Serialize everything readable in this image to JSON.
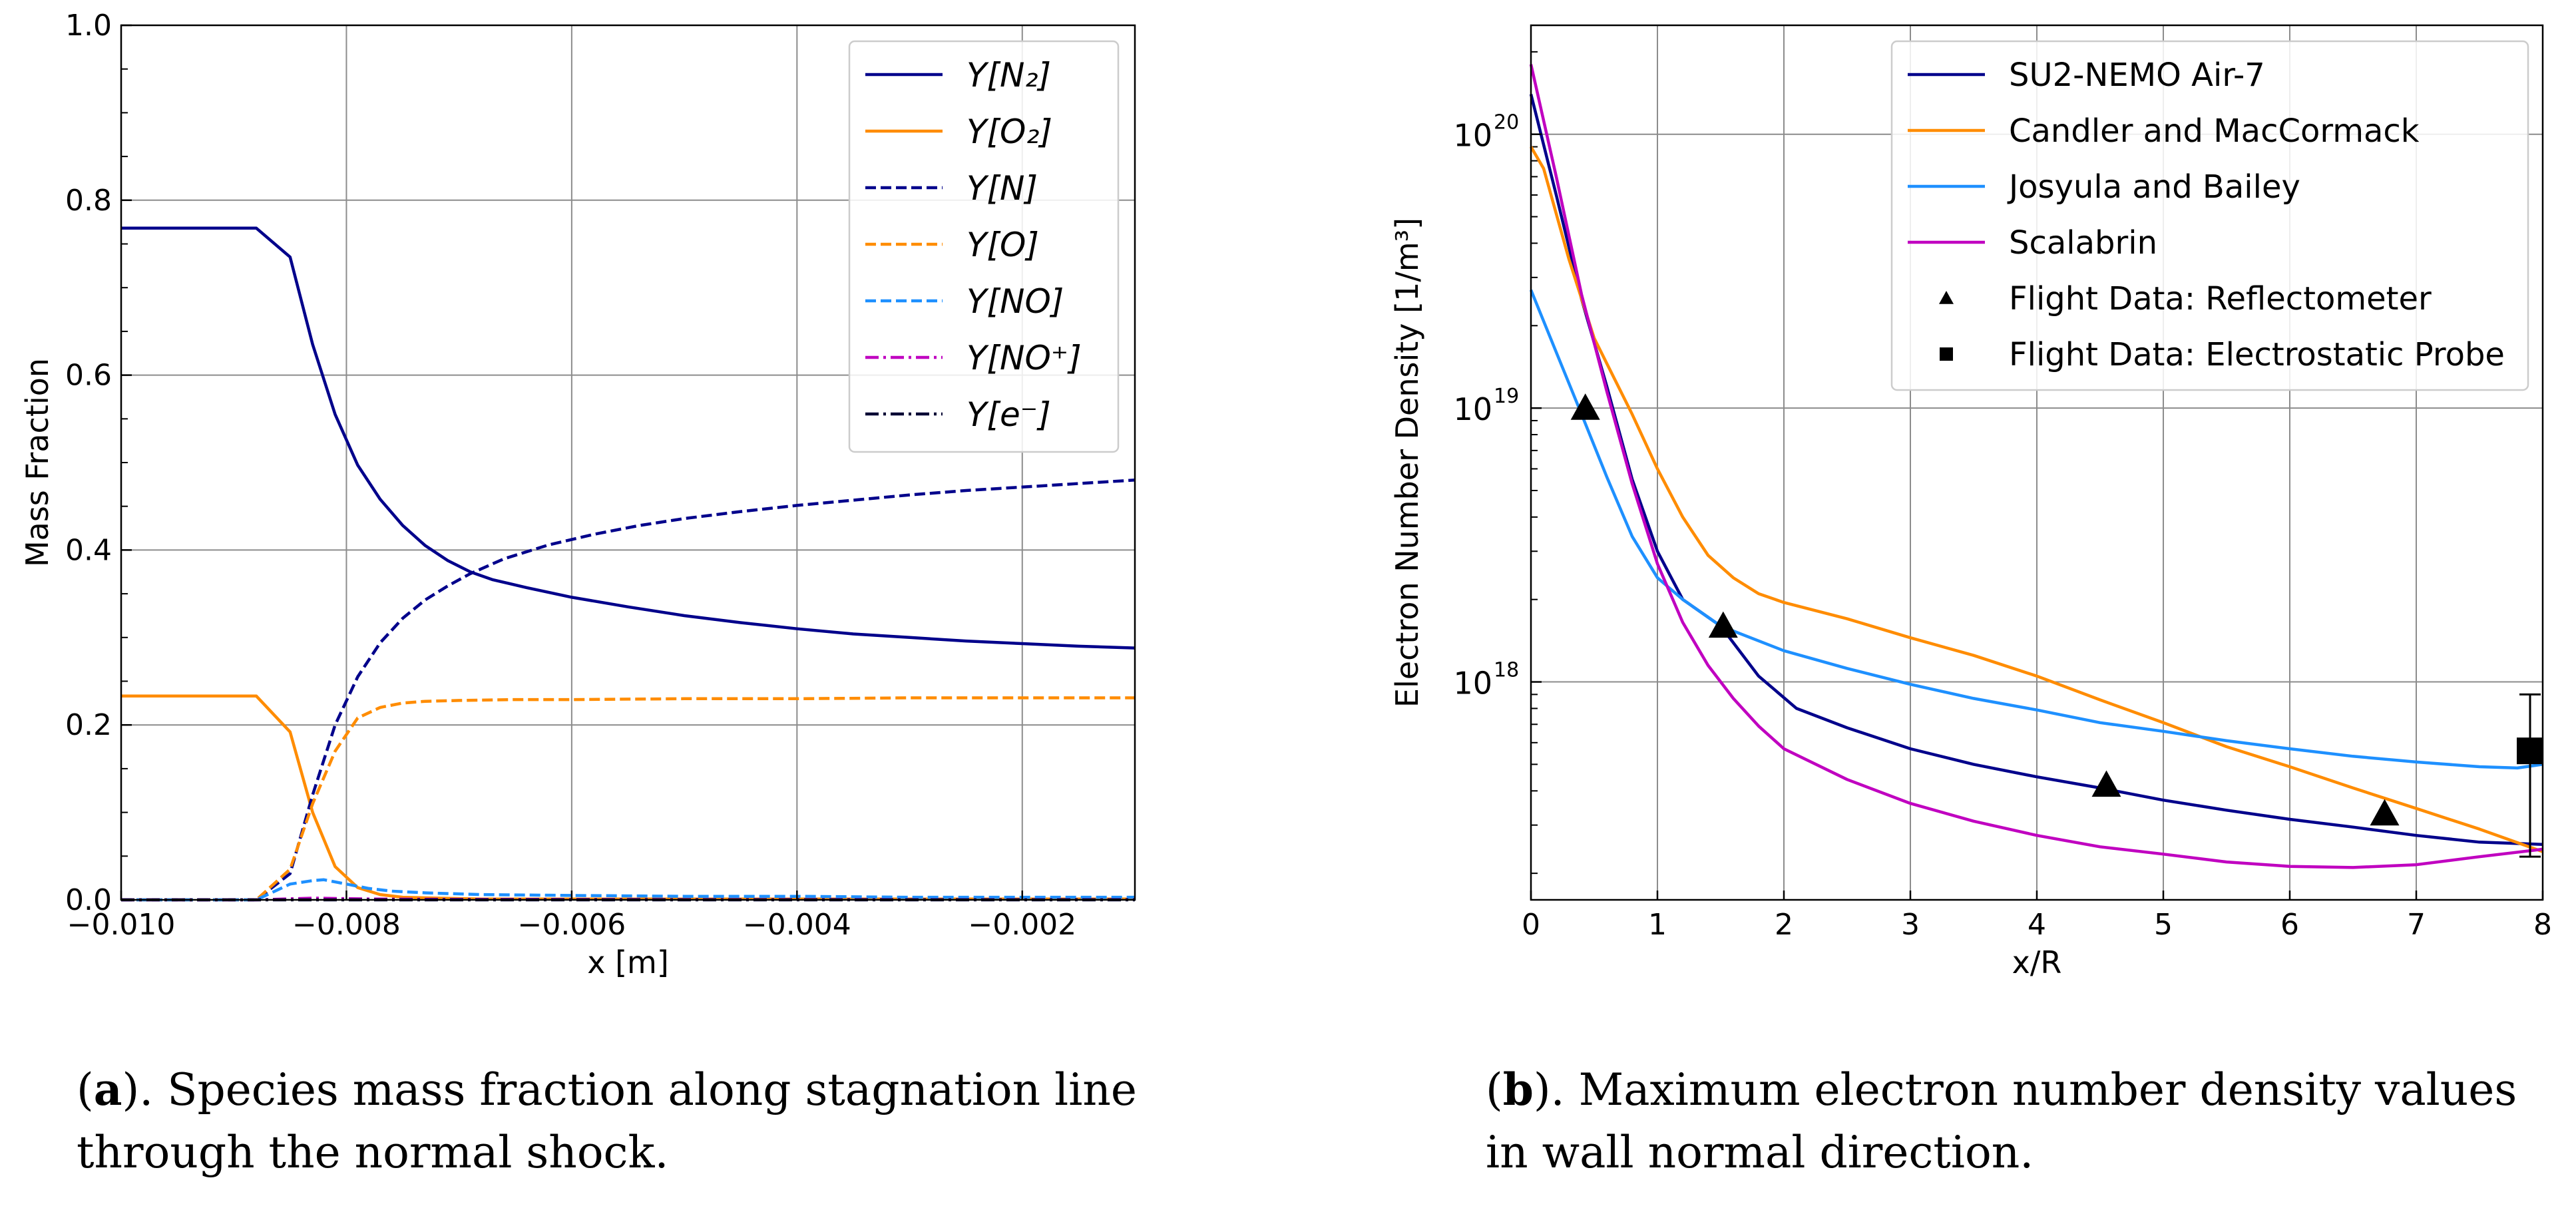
{
  "chart_data": [
    {
      "type": "line",
      "panel": "a",
      "title": "",
      "xlabel": "x [m]",
      "ylabel": "Mass Fraction",
      "xlim": [
        -0.01,
        -0.001
      ],
      "ylim": [
        0.0,
        1.0
      ],
      "grid": true,
      "legend": "top-right",
      "xticks": [
        -0.01,
        -0.008,
        -0.006,
        -0.004,
        -0.002
      ],
      "xtick_labels": [
        "−0.010",
        "−0.008",
        "−0.006",
        "−0.004",
        "−0.002"
      ],
      "yticks": [
        0.0,
        0.2,
        0.4,
        0.6,
        0.8,
        1.0
      ],
      "ytick_labels": [
        "0.0",
        "0.2",
        "0.4",
        "0.6",
        "0.8",
        "1.0"
      ],
      "series": [
        {
          "name": "Y[N2]",
          "label": "Y[N₂]",
          "color": "#00008b",
          "dash": "solid",
          "x": [
            -0.01,
            -0.0094,
            -0.0088,
            -0.0085,
            -0.0083,
            -0.0081,
            -0.0079,
            -0.0077,
            -0.0075,
            -0.0073,
            -0.0071,
            -0.0069,
            -0.0067,
            -0.0064,
            -0.006,
            -0.0055,
            -0.005,
            -0.0045,
            -0.004,
            -0.0035,
            -0.003,
            -0.0025,
            -0.002,
            -0.0015,
            -0.001
          ],
          "y": [
            0.768,
            0.768,
            0.768,
            0.735,
            0.635,
            0.555,
            0.497,
            0.458,
            0.428,
            0.405,
            0.388,
            0.375,
            0.366,
            0.357,
            0.346,
            0.335,
            0.325,
            0.317,
            0.31,
            0.304,
            0.3,
            0.296,
            0.293,
            0.29,
            0.288
          ]
        },
        {
          "name": "Y[O2]",
          "label": "Y[O₂]",
          "color": "#ff8c00",
          "dash": "solid",
          "x": [
            -0.01,
            -0.0094,
            -0.0088,
            -0.0085,
            -0.0083,
            -0.0081,
            -0.0079,
            -0.0077,
            -0.0075,
            -0.0072,
            -0.0068,
            -0.006,
            -0.005,
            -0.004,
            -0.003,
            -0.002,
            -0.001
          ],
          "y": [
            0.233,
            0.233,
            0.233,
            0.192,
            0.1,
            0.038,
            0.014,
            0.006,
            0.003,
            0.002,
            0.001,
            0.001,
            0.001,
            0.001,
            0.001,
            0.001,
            0.001
          ]
        },
        {
          "name": "Y[N]",
          "label": "Y[N]",
          "color": "#00008b",
          "dash": "dashed",
          "x": [
            -0.01,
            -0.0094,
            -0.0088,
            -0.0085,
            -0.0083,
            -0.0081,
            -0.0079,
            -0.0077,
            -0.0075,
            -0.0073,
            -0.0071,
            -0.0069,
            -0.0066,
            -0.0062,
            -0.0058,
            -0.0054,
            -0.005,
            -0.0045,
            -0.004,
            -0.0035,
            -0.003,
            -0.0025,
            -0.002,
            -0.0015,
            -0.001
          ],
          "y": [
            0.0,
            0.0,
            0.0,
            0.03,
            0.12,
            0.2,
            0.255,
            0.294,
            0.322,
            0.343,
            0.359,
            0.373,
            0.39,
            0.406,
            0.418,
            0.428,
            0.436,
            0.444,
            0.451,
            0.457,
            0.463,
            0.468,
            0.472,
            0.476,
            0.48
          ]
        },
        {
          "name": "Y[O]",
          "label": "Y[O]",
          "color": "#ff8c00",
          "dash": "dashed",
          "x": [
            -0.01,
            -0.0094,
            -0.0088,
            -0.0085,
            -0.0083,
            -0.0081,
            -0.0079,
            -0.0077,
            -0.0075,
            -0.0073,
            -0.007,
            -0.0065,
            -0.006,
            -0.005,
            -0.004,
            -0.003,
            -0.002,
            -0.001
          ],
          "y": [
            0.0,
            0.0,
            0.0,
            0.035,
            0.11,
            0.17,
            0.208,
            0.22,
            0.225,
            0.227,
            0.228,
            0.229,
            0.229,
            0.23,
            0.23,
            0.231,
            0.231,
            0.231
          ]
        },
        {
          "name": "Y[NO]",
          "label": "Y[NO]",
          "color": "#1e90ff",
          "dash": "dashed",
          "x": [
            -0.01,
            -0.0094,
            -0.0088,
            -0.0085,
            -0.0083,
            -0.0082,
            -0.008,
            -0.0078,
            -0.0076,
            -0.0073,
            -0.0068,
            -0.006,
            -0.005,
            -0.004,
            -0.003,
            -0.002,
            -0.001
          ],
          "y": [
            0.0,
            0.0,
            0.0,
            0.018,
            0.022,
            0.023,
            0.018,
            0.013,
            0.01,
            0.008,
            0.006,
            0.005,
            0.004,
            0.004,
            0.003,
            0.003,
            0.003
          ]
        },
        {
          "name": "Y[NO+]",
          "label": "Y[NO⁺]",
          "color": "#c000c0",
          "dash": "dashdot",
          "x": [
            -0.01,
            -0.0088,
            -0.0083,
            -0.0078,
            -0.007,
            -0.005,
            -0.003,
            -0.001
          ],
          "y": [
            0.0,
            0.0,
            0.002,
            0.001,
            0.0005,
            0.0003,
            0.0002,
            0.0002
          ]
        },
        {
          "name": "Y[e-]",
          "label": "Y[e⁻]",
          "color": "#000033",
          "dash": "dashdot",
          "x": [
            -0.01,
            -0.005,
            -0.001
          ],
          "y": [
            0.0,
            0.0,
            0.0
          ]
        }
      ]
    },
    {
      "type": "line",
      "panel": "b",
      "title": "",
      "xlabel": "x/R",
      "ylabel": "Electron Number Density [1/m³]",
      "yscale": "log",
      "xlim": [
        0,
        8
      ],
      "ylim": [
        1.6e+17,
        2.5e+20
      ],
      "grid": true,
      "legend": "top-right",
      "xticks": [
        0,
        1,
        2,
        3,
        4,
        5,
        6,
        7,
        8
      ],
      "xtick_labels": [
        "0",
        "1",
        "2",
        "3",
        "4",
        "5",
        "6",
        "7",
        "8"
      ],
      "yticks": [
        1e+18,
        1e+19,
        1e+20
      ],
      "ytick_labels": [
        "10",
        "10",
        "10"
      ],
      "ytick_exponents": [
        "18",
        "19",
        "20"
      ],
      "series": [
        {
          "name": "SU2-NEMO Air-7",
          "color": "#00008b",
          "marker": "none",
          "x": [
            0,
            0.2,
            0.4,
            0.6,
            0.8,
            1.0,
            1.2,
            1.5,
            1.8,
            2.1,
            2.5,
            3.0,
            3.5,
            4.0,
            4.5,
            5.0,
            5.5,
            6.0,
            6.5,
            7.0,
            7.5,
            8.0
          ],
          "y": [
            1.4e+20,
            6e+19,
            2.5e+19,
            1.2e+19,
            5.5e+18,
            3e+18,
            2e+18,
            1.6e+18,
            1.05e+18,
            8e+17,
            6.8e+17,
            5.7e+17,
            5e+17,
            4.5e+17,
            4.1e+17,
            3.7e+17,
            3.4e+17,
            3.15e+17,
            2.95e+17,
            2.75e+17,
            2.6e+17,
            2.55e+17
          ]
        },
        {
          "name": "Candler and MacCormack",
          "color": "#ff8c00",
          "marker": "none",
          "x": [
            0,
            0.1,
            0.3,
            0.5,
            0.8,
            1.0,
            1.2,
            1.4,
            1.6,
            1.8,
            2.0,
            2.5,
            3.0,
            3.5,
            4.0,
            4.5,
            5.0,
            5.5,
            6.0,
            6.5,
            7.0,
            7.5,
            8.0
          ],
          "y": [
            9e+19,
            7.5e+19,
            3.5e+19,
            1.8e+19,
            9.5e+18,
            6e+18,
            4e+18,
            2.9e+18,
            2.4e+18,
            2.1e+18,
            1.95e+18,
            1.7e+18,
            1.45e+18,
            1.25e+18,
            1.05e+18,
            8.6e+17,
            7.1e+17,
            5.8e+17,
            4.9e+17,
            4.1e+17,
            3.45e+17,
            2.9e+17,
            2.4e+17
          ]
        },
        {
          "name": "Josyula and Bailey",
          "color": "#1e90ff",
          "marker": "none",
          "x": [
            0,
            0.2,
            0.4,
            0.6,
            0.8,
            1.0,
            1.2,
            1.5,
            2.0,
            2.5,
            3.0,
            3.5,
            4.0,
            4.5,
            5.0,
            5.5,
            6.0,
            6.5,
            7.0,
            7.5,
            7.8,
            8.0
          ],
          "y": [
            2.7e+19,
            1.6e+19,
            9.5e+18,
            5.6e+18,
            3.4e+18,
            2.4e+18,
            2e+18,
            1.6e+18,
            1.3e+18,
            1.12e+18,
            9.8e+17,
            8.7e+17,
            7.9e+17,
            7.1e+17,
            6.6e+17,
            6.1e+17,
            5.7e+17,
            5.35e+17,
            5.1e+17,
            4.9e+17,
            4.85e+17,
            5e+17
          ]
        },
        {
          "name": "Scalabrin",
          "color": "#c000c0",
          "marker": "none",
          "x": [
            0,
            0.2,
            0.4,
            0.6,
            0.8,
            1.0,
            1.2,
            1.4,
            1.6,
            1.8,
            2.0,
            2.5,
            3.0,
            3.5,
            4.0,
            4.5,
            5.0,
            5.5,
            6.0,
            6.5,
            7.0,
            7.5,
            8.0
          ],
          "y": [
            1.8e+20,
            7e+19,
            2.6e+19,
            1.15e+19,
            5.3e+18,
            2.7e+18,
            1.65e+18,
            1.15e+18,
            8.7e+17,
            6.9e+17,
            5.7e+17,
            4.4e+17,
            3.6e+17,
            3.1e+17,
            2.75e+17,
            2.5e+17,
            2.35e+17,
            2.2e+17,
            2.12e+17,
            2.1e+17,
            2.15e+17,
            2.3e+17,
            2.45e+17
          ]
        },
        {
          "name": "Flight Data: Reflectometer",
          "color": "#000000",
          "marker": "triangle",
          "x": [
            0.43,
            1.52,
            4.55,
            6.75
          ],
          "y": [
            1e+19,
            1.6e+18,
            4.2e+17,
            3.3e+17
          ]
        },
        {
          "name": "Flight Data: Electrostatic Probe",
          "color": "#000000",
          "marker": "square",
          "x": [
            7.9
          ],
          "y": [
            5.6e+17
          ],
          "yerr_low": [
            2.3e+17
          ],
          "yerr_high": [
            9e+17
          ]
        }
      ]
    }
  ],
  "captions": {
    "a_label": "a",
    "a_text": ". Species mass fraction along stagnation line through the normal shock.",
    "b_label": "b",
    "b_text": ". Maximum electron number density values in wall normal direction."
  }
}
